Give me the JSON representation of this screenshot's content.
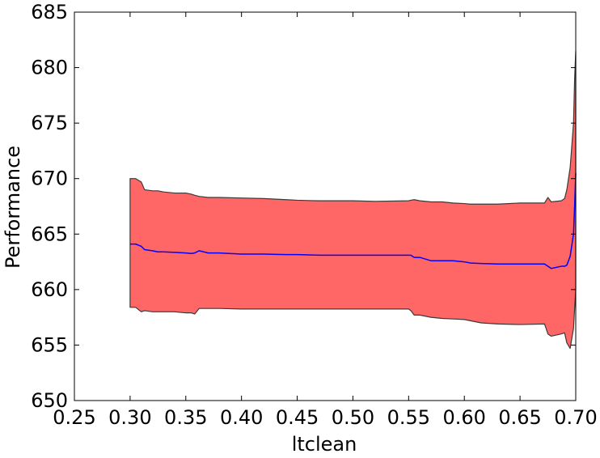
{
  "chart_data": {
    "type": "area",
    "title": "",
    "xlabel": "ltclean",
    "ylabel": "Performance",
    "xlim": [
      0.25,
      0.7
    ],
    "ylim": [
      650,
      685
    ],
    "xticks": [
      "0.25",
      "0.30",
      "0.35",
      "0.40",
      "0.45",
      "0.50",
      "0.55",
      "0.60",
      "0.65",
      "0.70"
    ],
    "yticks": [
      "650",
      "655",
      "660",
      "665",
      "670",
      "675",
      "680",
      "685"
    ],
    "grid": false,
    "legend": "none",
    "colors": {
      "band": "#ff6666",
      "band_edge": "#3a3a3a",
      "line": "#0000ff",
      "axes": "#000000"
    },
    "x": [
      0.3,
      0.305,
      0.31,
      0.313,
      0.32,
      0.325,
      0.33,
      0.34,
      0.35,
      0.355,
      0.358,
      0.362,
      0.37,
      0.38,
      0.4,
      0.42,
      0.44,
      0.45,
      0.47,
      0.48,
      0.5,
      0.52,
      0.55,
      0.552,
      0.555,
      0.56,
      0.57,
      0.58,
      0.59,
      0.6,
      0.605,
      0.615,
      0.63,
      0.65,
      0.672,
      0.675,
      0.678,
      0.687,
      0.69,
      0.692,
      0.695,
      0.698,
      0.699,
      0.7
    ],
    "series": [
      {
        "role": "mean",
        "values": [
          664.1,
          664.1,
          663.9,
          663.6,
          663.5,
          663.4,
          663.4,
          663.35,
          663.3,
          663.25,
          663.3,
          663.5,
          663.3,
          663.3,
          663.2,
          663.2,
          663.15,
          663.15,
          663.1,
          663.1,
          663.1,
          663.1,
          663.1,
          663.1,
          662.9,
          662.9,
          662.6,
          662.6,
          662.6,
          662.5,
          662.4,
          662.35,
          662.3,
          662.3,
          662.3,
          662.1,
          661.9,
          662.1,
          662.1,
          662.2,
          663.0,
          665.0,
          667.5,
          670.5
        ]
      },
      {
        "role": "upper",
        "values": [
          670.0,
          670.0,
          669.7,
          669.0,
          668.9,
          668.9,
          668.8,
          668.7,
          668.7,
          668.6,
          668.5,
          668.4,
          668.3,
          668.3,
          668.25,
          668.2,
          668.1,
          668.05,
          668.0,
          668.0,
          668.0,
          667.95,
          668.0,
          668.05,
          668.1,
          668.0,
          667.9,
          667.9,
          667.8,
          667.75,
          667.7,
          667.7,
          667.7,
          667.8,
          667.8,
          668.3,
          667.9,
          668.0,
          668.2,
          669.0,
          671.0,
          675.0,
          679.0,
          681.5
        ]
      },
      {
        "role": "lower",
        "values": [
          658.4,
          658.4,
          658.0,
          658.1,
          658.0,
          658.0,
          658.0,
          658.0,
          657.9,
          657.9,
          657.8,
          658.3,
          658.3,
          658.3,
          658.25,
          658.25,
          658.25,
          658.25,
          658.25,
          658.25,
          658.25,
          658.25,
          658.25,
          658.1,
          657.7,
          657.7,
          657.5,
          657.4,
          657.35,
          657.3,
          657.2,
          657.0,
          656.9,
          656.85,
          656.9,
          656.0,
          655.8,
          656.0,
          656.1,
          655.2,
          654.7,
          656.5,
          658.3,
          660.0
        ]
      }
    ]
  }
}
